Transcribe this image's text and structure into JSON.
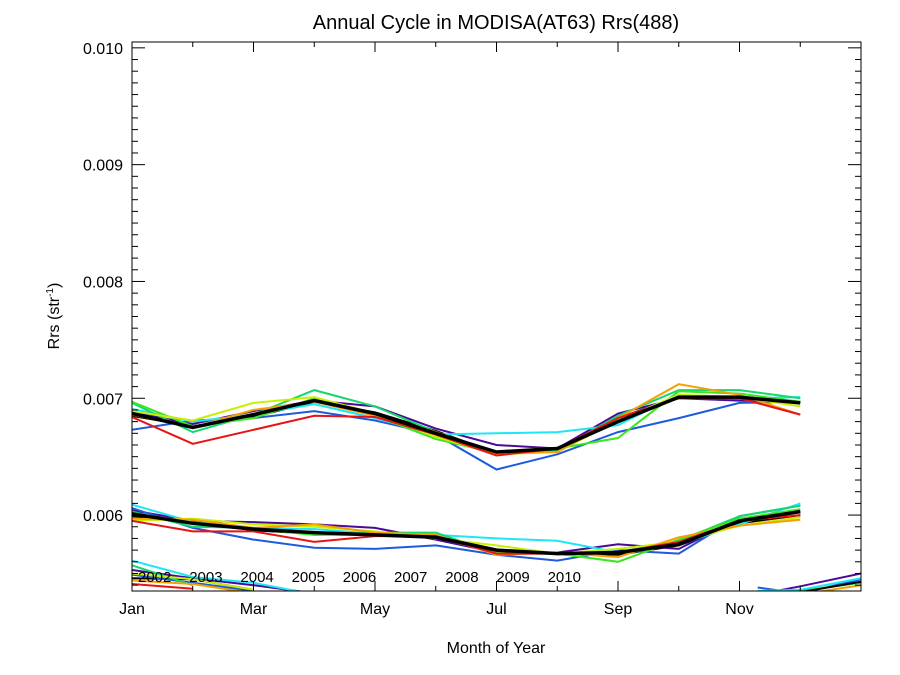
{
  "chart_data": {
    "type": "line",
    "title": "Annual Cycle in MODISA(AT63) Rrs(488)",
    "xlabel": "Month of Year",
    "ylabel_main": "Rrs (str",
    "ylabel_sup": "-1",
    "ylabel_close": ")",
    "xlim": [
      1,
      13
    ],
    "ylim": [
      0.00535,
      0.01005
    ],
    "x_ticks": [
      {
        "value": 1,
        "label": "Jan"
      },
      {
        "value": 3,
        "label": "Mar"
      },
      {
        "value": 5,
        "label": "May"
      },
      {
        "value": 7,
        "label": "Jul"
      },
      {
        "value": 9,
        "label": "Sep"
      },
      {
        "value": 11,
        "label": "Nov"
      }
    ],
    "y_ticks": [
      {
        "value": 0.006,
        "label": "0.006"
      },
      {
        "value": 0.007,
        "label": "0.007"
      },
      {
        "value": 0.008,
        "label": "0.008"
      },
      {
        "value": 0.009,
        "label": "0.009"
      },
      {
        "value": 0.01,
        "label": "0.010"
      }
    ],
    "x": [
      1,
      2,
      3,
      4,
      5,
      6,
      7,
      8,
      9,
      10,
      11,
      12
    ],
    "series": [
      {
        "name": "2002",
        "color": "#000000",
        "upper": [
          0.00685,
          0.00676,
          0.00684,
          0.00697,
          0.00688,
          0.00672,
          0.00653,
          0.00657,
          0.00683,
          0.00701,
          0.007,
          0.00697
        ],
        "lower": [
          0.00599,
          0.00594,
          0.00587,
          0.00584,
          0.00583,
          0.00581,
          0.0057,
          0.00567,
          0.00566,
          0.00574,
          0.00593,
          0.006
        ]
      },
      {
        "name": "2003",
        "color": "#4b0a96",
        "upper": [
          0.00688,
          0.00678,
          0.00689,
          0.00698,
          0.00693,
          0.00674,
          0.0066,
          0.00657,
          0.00687,
          0.007,
          0.00698,
          0.00697
        ],
        "lower": [
          0.00604,
          0.00595,
          0.00594,
          0.00592,
          0.00589,
          0.00579,
          0.00568,
          0.00568,
          0.00575,
          0.00571,
          0.00597,
          0.00603
        ]
      },
      {
        "name": "2004",
        "color": "#1e5adc",
        "upper": [
          0.00673,
          0.00681,
          0.00683,
          0.00689,
          0.00681,
          0.00669,
          0.00639,
          0.00652,
          0.00671,
          0.00683,
          0.00696,
          0.00697
        ],
        "lower": [
          0.00606,
          0.00589,
          0.00579,
          0.00572,
          0.00571,
          0.00574,
          0.00566,
          0.00561,
          0.0057,
          0.00567,
          0.00599,
          0.00608
        ]
      },
      {
        "name": "2005",
        "color": "#1ee6f5",
        "upper": [
          0.00691,
          0.0068,
          0.00686,
          0.00695,
          0.00683,
          0.00669,
          0.0067,
          0.00671,
          0.00677,
          0.00703,
          0.007,
          0.00701
        ],
        "lower": [
          0.00609,
          0.00594,
          0.00589,
          0.00588,
          0.00584,
          0.00583,
          0.0058,
          0.00578,
          0.00568,
          0.00575,
          0.00592,
          0.0061
        ]
      },
      {
        "name": "2006",
        "color": "#14d76e",
        "upper": [
          0.00696,
          0.00671,
          0.00686,
          0.00707,
          0.00693,
          0.00671,
          0.00653,
          0.00655,
          0.00685,
          0.00707,
          0.00707,
          0.007
        ],
        "lower": [
          0.00603,
          0.0059,
          0.00589,
          0.00583,
          0.00585,
          0.00585,
          0.00567,
          0.00567,
          0.00568,
          0.00578,
          0.00599,
          0.00608
        ]
      },
      {
        "name": "2007",
        "color": "#3ce61e",
        "upper": [
          0.00697,
          0.00676,
          0.00683,
          0.007,
          0.00685,
          0.00665,
          0.00653,
          0.00657,
          0.00666,
          0.00706,
          0.00704,
          0.00697
        ],
        "lower": [
          0.00601,
          0.00593,
          0.00588,
          0.00583,
          0.00583,
          0.00581,
          0.00568,
          0.00567,
          0.0056,
          0.00579,
          0.00597,
          0.00605
        ]
      },
      {
        "name": "2008",
        "color": "#c8f000",
        "upper": [
          0.00689,
          0.00681,
          0.00696,
          0.00701,
          0.00687,
          0.00667,
          0.00652,
          0.00654,
          0.00681,
          0.00703,
          0.00701,
          0.00693
        ],
        "lower": [
          0.00595,
          0.00597,
          0.00592,
          0.0059,
          0.00586,
          0.0058,
          0.00574,
          0.00567,
          0.00571,
          0.00577,
          0.00591,
          0.00598
        ]
      },
      {
        "name": "2009",
        "color": "#f5a000",
        "upper": [
          0.00686,
          0.00675,
          0.0069,
          0.00697,
          0.00685,
          0.00671,
          0.00653,
          0.00654,
          0.00683,
          0.00712,
          0.00703,
          0.00686
        ],
        "lower": [
          0.00597,
          0.00596,
          0.00589,
          0.00592,
          0.00585,
          0.00583,
          0.00566,
          0.00568,
          0.00564,
          0.00581,
          0.00591,
          0.00596
        ]
      },
      {
        "name": "2010",
        "color": "#e61414",
        "upper": [
          0.00684,
          0.00661,
          0.00673,
          0.00685,
          0.00684,
          0.00669,
          0.00651,
          0.00657,
          0.00683,
          0.007,
          0.007,
          0.00686
        ],
        "lower": [
          0.00595,
          0.00586,
          0.00586,
          0.00577,
          0.00582,
          0.00582,
          0.00567,
          0.00567,
          0.00568,
          0.00577,
          0.00595,
          0.006
        ]
      }
    ],
    "mean": {
      "color": "#000000",
      "upper": [
        0.00687,
        0.00675,
        0.00686,
        0.00698,
        0.00687,
        0.0067,
        0.00654,
        0.00657,
        0.0068,
        0.00701,
        0.00701,
        0.00696
      ],
      "lower": [
        0.00601,
        0.00593,
        0.00588,
        0.00585,
        0.00583,
        0.00581,
        0.0057,
        0.00567,
        0.00568,
        0.00575,
        0.00595,
        0.00603
      ]
    },
    "bottom_fragments": [
      {
        "color": "#000000",
        "points": [
          [
            1,
            0.00546
          ],
          [
            2,
            0.00545
          ],
          [
            3,
            0.00536
          ]
        ]
      },
      {
        "color": "#4b0a96",
        "points": [
          [
            1,
            0.00553
          ],
          [
            2,
            0.00546
          ],
          [
            3,
            0.0054
          ],
          [
            4,
            0.00533
          ]
        ]
      },
      {
        "color": "#1e5adc",
        "points": [
          [
            1,
            0.00549
          ],
          [
            2,
            0.00542
          ],
          [
            3,
            0.00535
          ]
        ]
      },
      {
        "color": "#1ee6f5",
        "points": [
          [
            1,
            0.00561
          ],
          [
            2,
            0.00547
          ],
          [
            3,
            0.00542
          ],
          [
            4,
            0.00532
          ]
        ]
      },
      {
        "color": "#14d76e",
        "points": [
          [
            1,
            0.00557
          ],
          [
            2,
            0.0054
          ]
        ]
      },
      {
        "color": "#c8f000",
        "points": [
          [
            1,
            0.0055
          ],
          [
            2,
            0.00545
          ],
          [
            3,
            0.00536
          ]
        ]
      },
      {
        "color": "#f5a000",
        "points": [
          [
            1,
            0.00544
          ],
          [
            2,
            0.00541
          ],
          [
            3,
            0.00533
          ]
        ]
      },
      {
        "color": "#e61414",
        "points": [
          [
            1,
            0.00541
          ],
          [
            2,
            0.00537
          ]
        ]
      },
      {
        "color": "#4b0a96",
        "points": [
          [
            11.3,
            0.00532
          ],
          [
            12,
            0.00539
          ],
          [
            13,
            0.0055
          ]
        ]
      },
      {
        "color": "#1e5adc",
        "points": [
          [
            11.3,
            0.00538
          ],
          [
            12,
            0.00533
          ],
          [
            13,
            0.00545
          ]
        ]
      },
      {
        "color": "#1ee6f5",
        "points": [
          [
            11.3,
            0.00535
          ],
          [
            12,
            0.00536
          ],
          [
            13,
            0.00546
          ]
        ]
      },
      {
        "color": "#14d76e",
        "points": [
          [
            11.6,
            0.00532
          ],
          [
            12,
            0.00535
          ],
          [
            13,
            0.00542
          ]
        ]
      },
      {
        "color": "#f5a000",
        "points": [
          [
            12,
            0.00532
          ],
          [
            13,
            0.0054
          ]
        ]
      },
      {
        "color": "#000000",
        "points": [
          [
            12,
            0.00534
          ],
          [
            13,
            0.00543
          ]
        ]
      }
    ],
    "legend_placement": "bottom-left",
    "grid": false
  }
}
